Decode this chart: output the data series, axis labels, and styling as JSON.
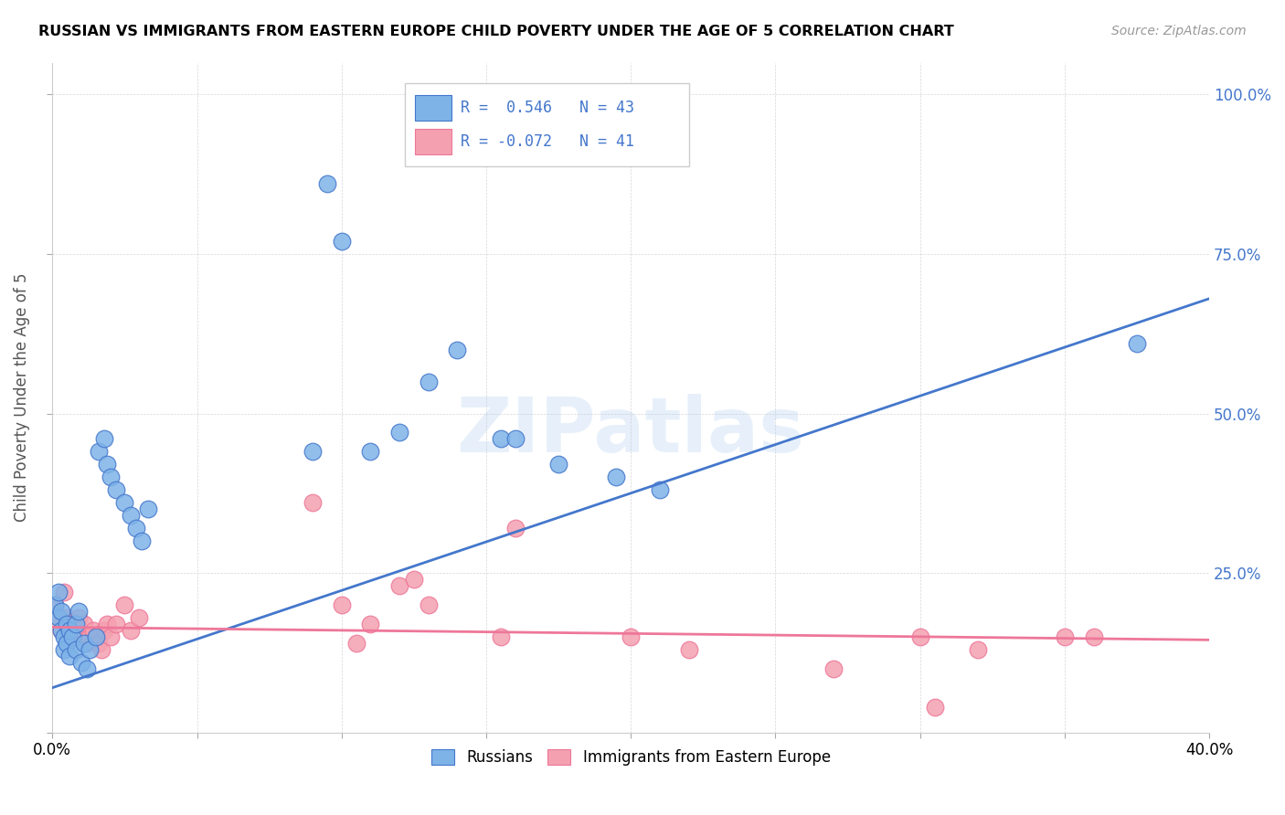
{
  "title": "RUSSIAN VS IMMIGRANTS FROM EASTERN EUROPE CHILD POVERTY UNDER THE AGE OF 5 CORRELATION CHART",
  "source": "Source: ZipAtlas.com",
  "ylabel": "Child Poverty Under the Age of 5",
  "xlim": [
    0,
    0.4
  ],
  "ylim": [
    0,
    1.05
  ],
  "legend_blue_r": "R =  0.546",
  "legend_blue_n": "N = 43",
  "legend_pink_r": "R = -0.072",
  "legend_pink_n": "N = 41",
  "blue_color": "#7EB3E8",
  "pink_color": "#F4A0B0",
  "blue_line_color": "#4477CC",
  "pink_line_color": "#EE7799",
  "background_color": "#FFFFFF",
  "watermark": "ZIPatlas",
  "russians_x": [
    0.001,
    0.002,
    0.002,
    0.003,
    0.003,
    0.004,
    0.004,
    0.005,
    0.005,
    0.006,
    0.006,
    0.007,
    0.008,
    0.008,
    0.009,
    0.01,
    0.011,
    0.012,
    0.013,
    0.015,
    0.016,
    0.018,
    0.019,
    0.02,
    0.022,
    0.025,
    0.027,
    0.029,
    0.031,
    0.033,
    0.09,
    0.095,
    0.1,
    0.11,
    0.12,
    0.13,
    0.14,
    0.155,
    0.16,
    0.175,
    0.195,
    0.21,
    0.375
  ],
  "russians_y": [
    0.2,
    0.22,
    0.18,
    0.16,
    0.19,
    0.15,
    0.13,
    0.17,
    0.14,
    0.16,
    0.12,
    0.15,
    0.17,
    0.13,
    0.19,
    0.11,
    0.14,
    0.1,
    0.13,
    0.15,
    0.44,
    0.46,
    0.42,
    0.4,
    0.38,
    0.36,
    0.34,
    0.32,
    0.3,
    0.35,
    0.44,
    0.86,
    0.77,
    0.44,
    0.47,
    0.55,
    0.6,
    0.46,
    0.46,
    0.42,
    0.4,
    0.38,
    0.61
  ],
  "eastern_x": [
    0.001,
    0.002,
    0.003,
    0.004,
    0.005,
    0.006,
    0.007,
    0.008,
    0.009,
    0.01,
    0.011,
    0.012,
    0.013,
    0.014,
    0.015,
    0.016,
    0.017,
    0.018,
    0.019,
    0.02,
    0.022,
    0.025,
    0.027,
    0.03,
    0.09,
    0.1,
    0.105,
    0.11,
    0.12,
    0.125,
    0.13,
    0.155,
    0.16,
    0.2,
    0.22,
    0.27,
    0.3,
    0.305,
    0.32,
    0.35,
    0.36
  ],
  "eastern_y": [
    0.2,
    0.18,
    0.16,
    0.22,
    0.18,
    0.15,
    0.17,
    0.16,
    0.18,
    0.15,
    0.17,
    0.14,
    0.15,
    0.16,
    0.15,
    0.14,
    0.13,
    0.16,
    0.17,
    0.15,
    0.17,
    0.2,
    0.16,
    0.18,
    0.36,
    0.2,
    0.14,
    0.17,
    0.23,
    0.24,
    0.2,
    0.15,
    0.32,
    0.15,
    0.13,
    0.1,
    0.15,
    0.04,
    0.13,
    0.15,
    0.15
  ],
  "blue_line_x0": 0.0,
  "blue_line_y0": 0.07,
  "blue_line_x1": 0.4,
  "blue_line_y1": 0.68,
  "pink_line_x0": 0.0,
  "pink_line_y0": 0.165,
  "pink_line_x1": 0.4,
  "pink_line_y1": 0.145
}
